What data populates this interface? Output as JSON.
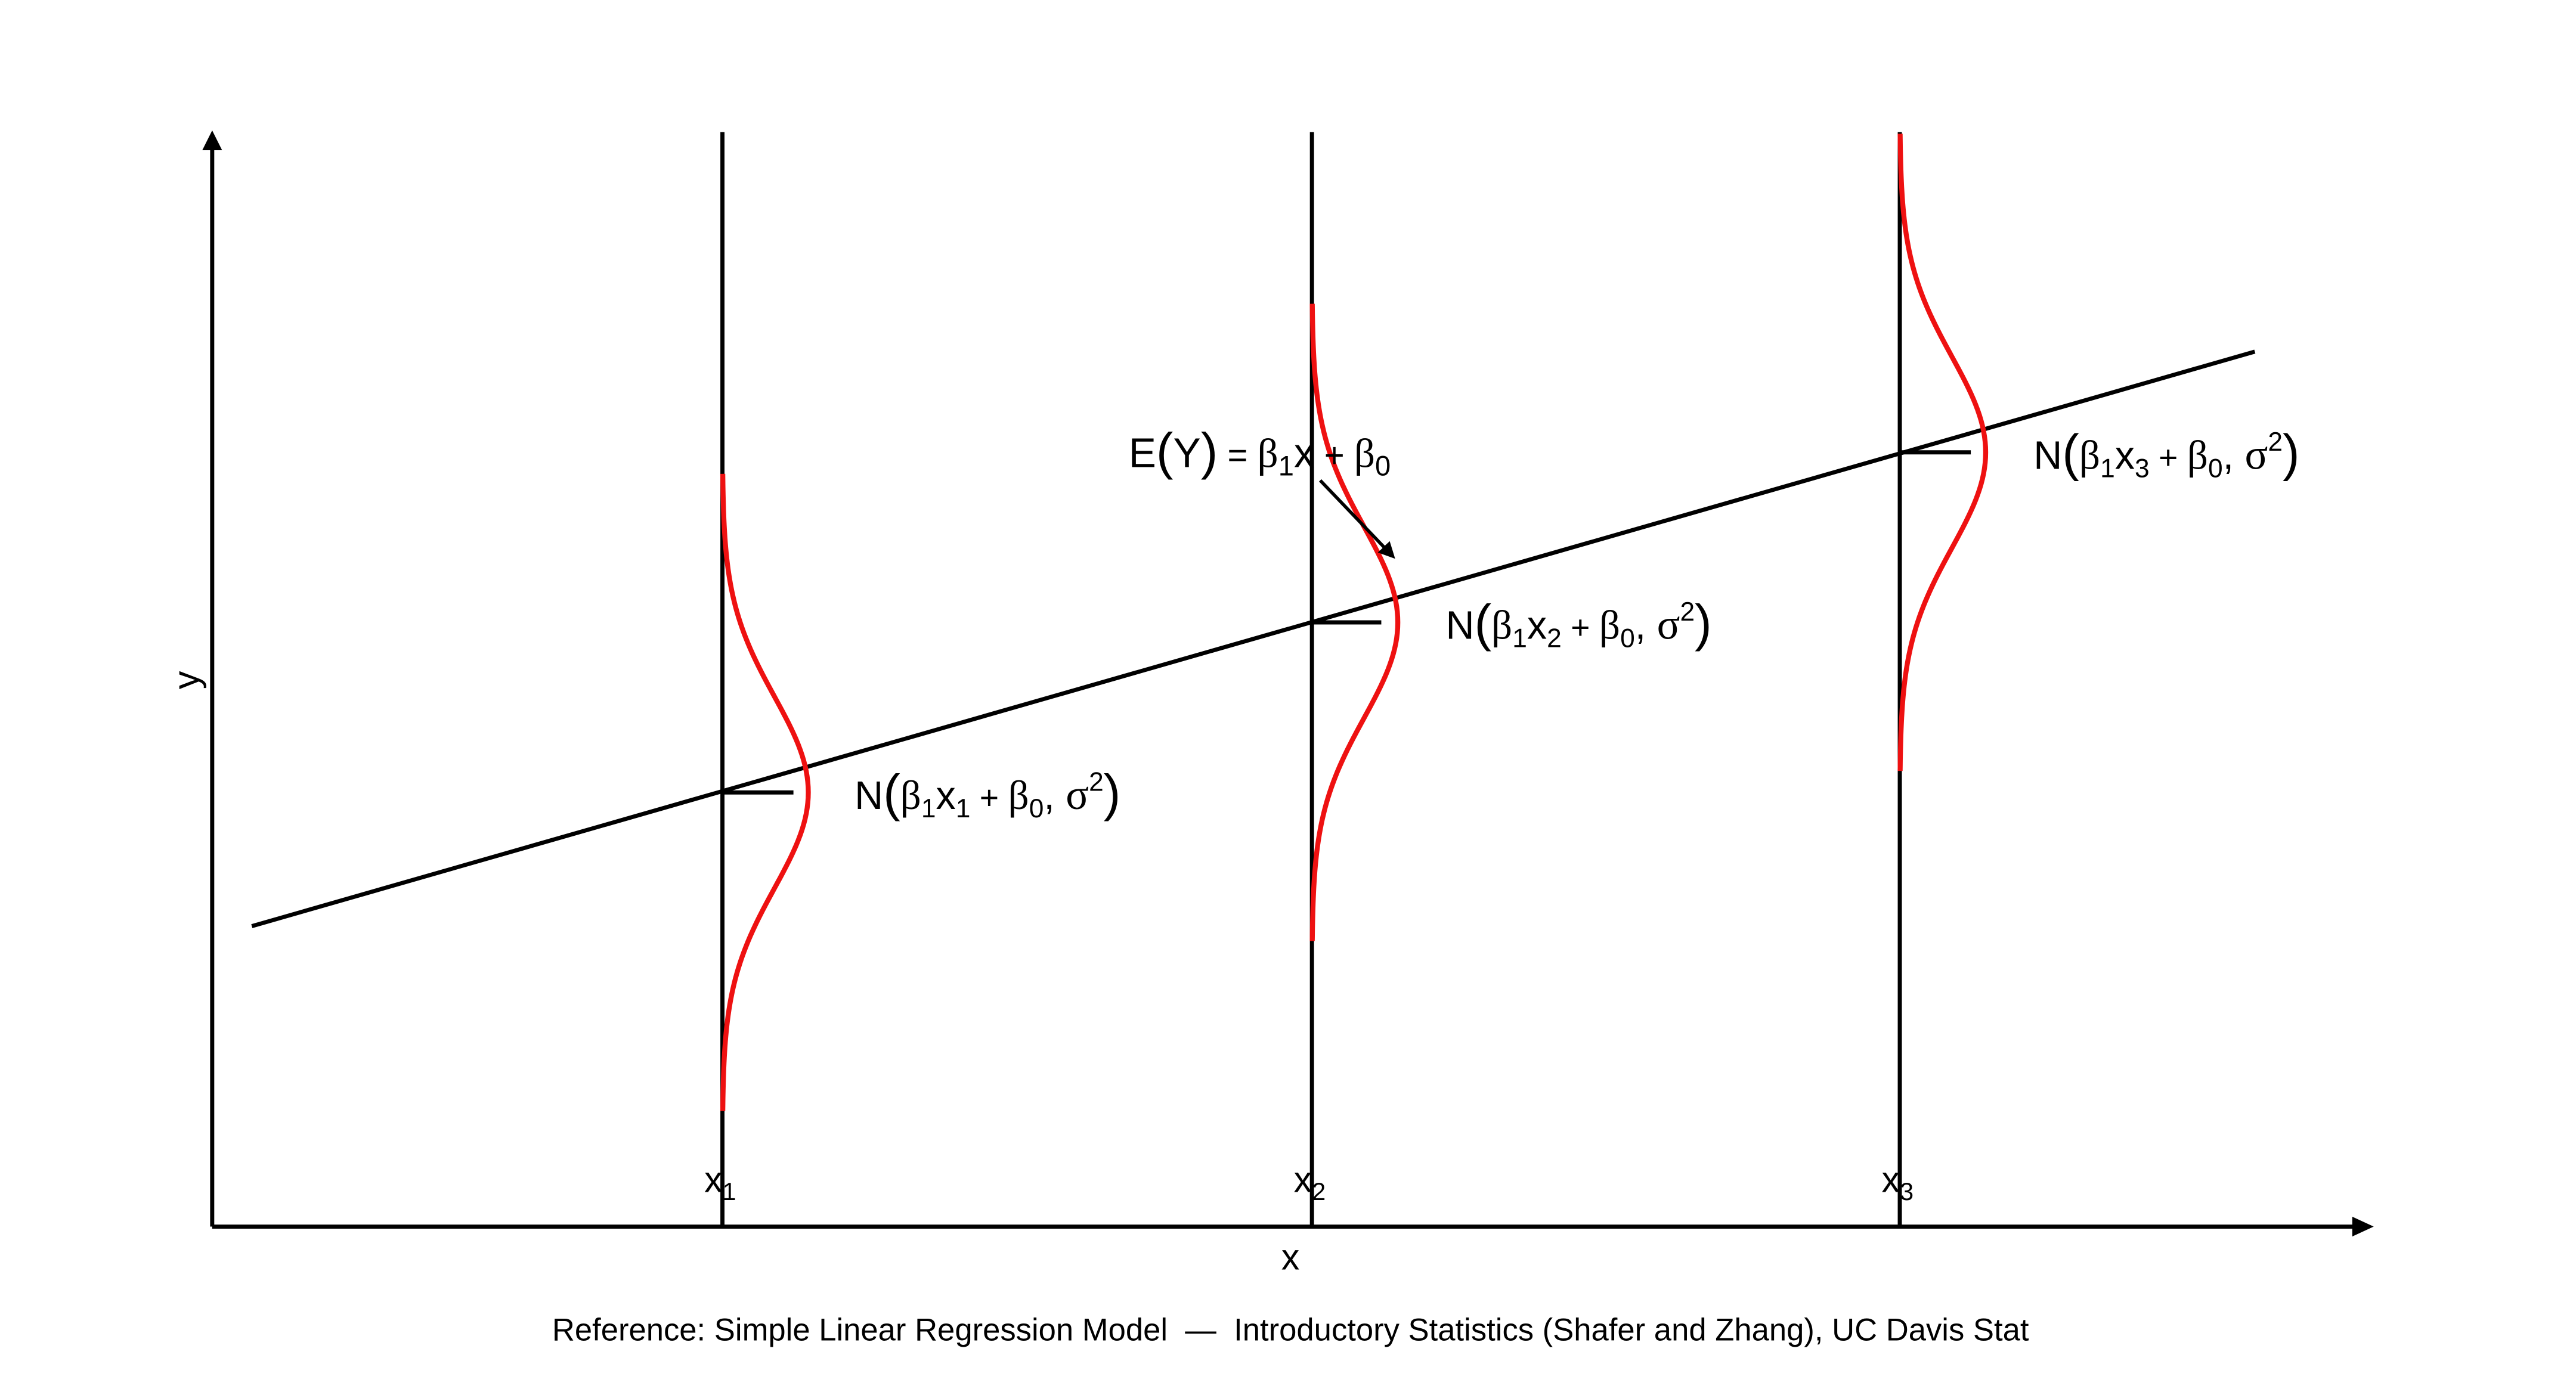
{
  "axes": {
    "x_label": "x",
    "y_label": "y"
  },
  "ticks": [
    {
      "base": "x",
      "sub": "1"
    },
    {
      "base": "x",
      "sub": "2"
    },
    {
      "base": "x",
      "sub": "3"
    }
  ],
  "regression_label": {
    "text": "E(Y) = β1x + β0",
    "lhs": "E",
    "paren_open": "(",
    "var": "Y",
    "paren_close": ")",
    "eq": " = ",
    "beta1": "β",
    "beta1_sub": "1",
    "x": "x",
    "plus": " + ",
    "beta0": "β",
    "beta0_sub": "0"
  },
  "distributions": [
    {
      "text": "N(β1x1 + β0, σ2)",
      "N": "N",
      "open": "(",
      "b1": "β",
      "b1_sub": "1",
      "x": "x",
      "x_sub": "1",
      "plus": " + ",
      "b0": "β",
      "b0_sub": "0",
      "comma": ", ",
      "sigma": "σ",
      "sup": "2",
      "close": ")"
    },
    {
      "text": "N(β1x2 + β0, σ2)",
      "N": "N",
      "open": "(",
      "b1": "β",
      "b1_sub": "1",
      "x": "x",
      "x_sub": "2",
      "plus": " + ",
      "b0": "β",
      "b0_sub": "0",
      "comma": ", ",
      "sigma": "σ",
      "sup": "2",
      "close": ")"
    },
    {
      "text": "N(β1x3 + β0, σ2)",
      "N": "N",
      "open": "(",
      "b1": "β",
      "b1_sub": "1",
      "x": "x",
      "x_sub": "3",
      "plus": " + ",
      "b0": "β",
      "b0_sub": "0",
      "comma": ", ",
      "sigma": "σ",
      "sup": "2",
      "close": ")"
    }
  ],
  "reference": "Reference: Simple Linear Regression Model  —  Introductory Statistics (Shafer and Zhang), UC Davis Stat",
  "colors": {
    "axis": "#000000",
    "regression_line": "#000000",
    "normal_curve": "#ee1111"
  }
}
